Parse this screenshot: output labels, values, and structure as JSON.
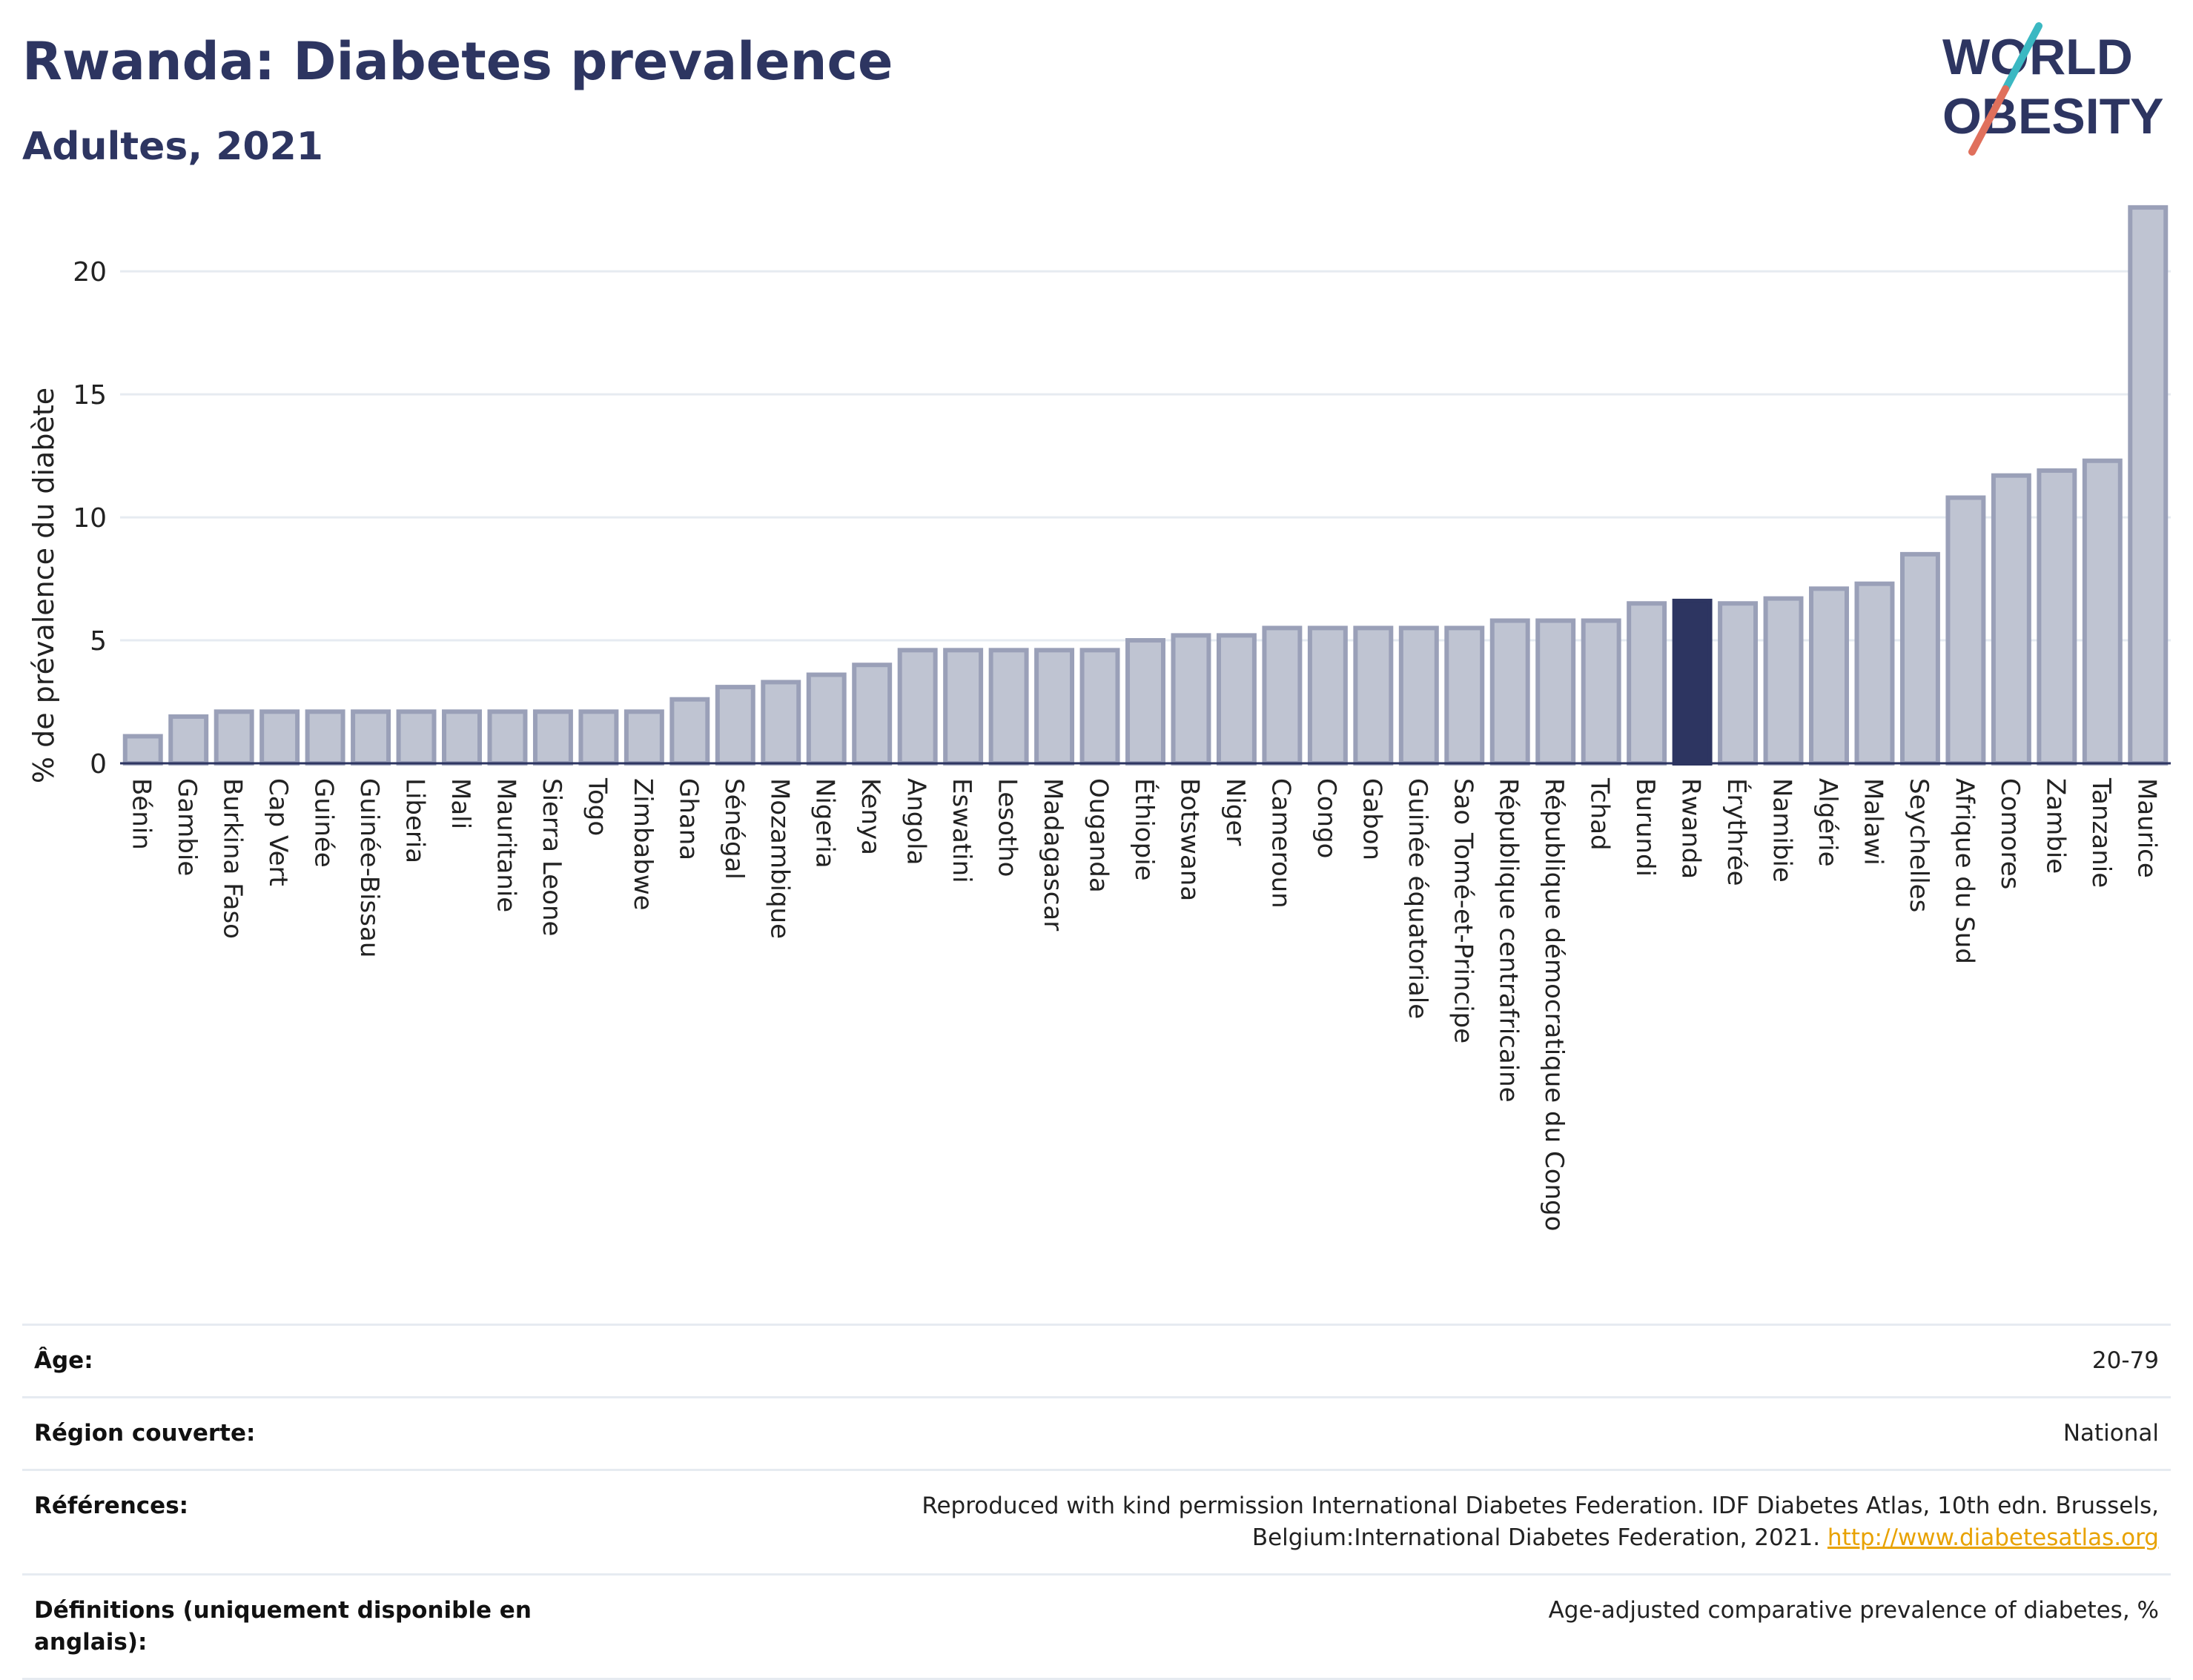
{
  "header": {
    "title": "Rwanda: Diabetes prevalence",
    "subtitle": "Adultes, 2021"
  },
  "logo": {
    "line1": "WORLD",
    "line2": "OBESITY"
  },
  "colors": {
    "bar": "#bfc4d2",
    "bar_border": "#9aa0b8",
    "highlight": "#2d3561",
    "text": "#2d3561"
  },
  "chart_data": {
    "type": "bar",
    "ylabel": "% de prévalence du diabète",
    "ylim": [
      0,
      23.5
    ],
    "yticks": [
      0,
      5,
      10,
      15,
      20
    ],
    "grid": true,
    "highlight": "Rwanda",
    "categories": [
      "Bénin",
      "Gambie",
      "Burkina Faso",
      "Cap Vert",
      "Guinée",
      "Guinée-Bissau",
      "Liberia",
      "Mali",
      "Mauritanie",
      "Sierra Leone",
      "Togo",
      "Zimbabwe",
      "Ghana",
      "Sénégal",
      "Mozambique",
      "Nigeria",
      "Kenya",
      "Angola",
      "Eswatini",
      "Lesotho",
      "Madagascar",
      "Ouganda",
      "Éthiopie",
      "Botswana",
      "Niger",
      "Cameroun",
      "Congo",
      "Gabon",
      "Guinée équatoriale",
      "Sao Tomé-et-Principe",
      "République centrafricaine",
      "République démocratique du Congo",
      "Tchad",
      "Burundi",
      "Rwanda",
      "Érythrée",
      "Namibie",
      "Algérie",
      "Malawi",
      "Seychelles",
      "Afrique du Sud",
      "Comores",
      "Zambie",
      "Tanzanie",
      "Maurice"
    ],
    "values": [
      1.1,
      1.9,
      2.1,
      2.1,
      2.1,
      2.1,
      2.1,
      2.1,
      2.1,
      2.1,
      2.1,
      2.1,
      2.6,
      3.1,
      3.3,
      3.6,
      4.0,
      4.6,
      4.6,
      4.6,
      4.6,
      4.6,
      5.0,
      5.2,
      5.2,
      5.5,
      5.5,
      5.5,
      5.5,
      5.5,
      5.8,
      5.8,
      5.8,
      6.5,
      6.6,
      6.5,
      6.7,
      7.1,
      7.3,
      8.5,
      10.8,
      11.7,
      11.9,
      12.3,
      22.6
    ]
  },
  "meta": [
    {
      "label": "Âge:",
      "value": "20-79"
    },
    {
      "label": "Région couverte:",
      "value": "National"
    },
    {
      "label": "Références:",
      "value": "Reproduced with kind permission International Diabetes Federation.  IDF Diabetes Atlas, 10th edn. Brussels, Belgium:International Diabetes Federation, 2021.",
      "link": "http://www.diabetesatlas.org"
    },
    {
      "label": "Définitions (uniquement disponible en anglais):",
      "value": "Age-adjusted comparative prevalence of diabetes, %"
    }
  ]
}
